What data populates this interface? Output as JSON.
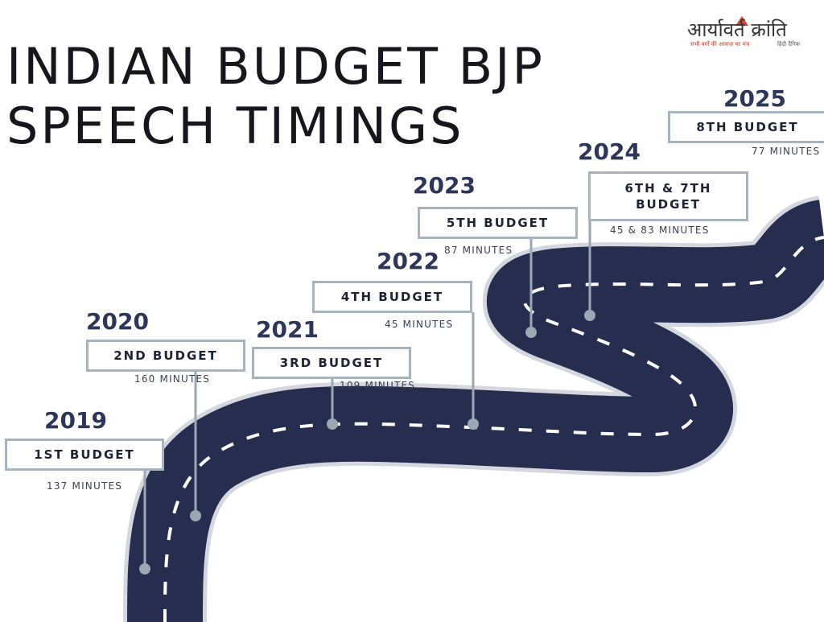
{
  "title": {
    "line1": "INDIAN BUDGET BJP",
    "line2": "SPEECH TIMINGS"
  },
  "logo": {
    "text": "आर्यावर्त क्रांति",
    "tagline": "सभी वर्गों की आवाज़ का मंच",
    "subtitle": "हिंदी दैनिक"
  },
  "milestones": [
    {
      "year": "2019",
      "label": "1ST BUDGET",
      "minutes": "137 MINUTES"
    },
    {
      "year": "2020",
      "label": "2ND BUDGET",
      "minutes": "160 MINUTES"
    },
    {
      "year": "2021",
      "label": "3RD BUDGET",
      "minutes": "109 MINUTES"
    },
    {
      "year": "2022",
      "label": "4TH BUDGET",
      "minutes": "45 MINUTES"
    },
    {
      "year": "2023",
      "label": "5TH BUDGET",
      "minutes": "87 MINUTES"
    },
    {
      "year": "2024",
      "label": "6TH & 7TH BUDGET",
      "minutes": "45 & 83 MINUTES"
    },
    {
      "year": "2025",
      "label": "8TH BUDGET",
      "minutes": "77 MINUTES"
    }
  ],
  "colors": {
    "road": "#262d4f",
    "road_edge": "#d4d8de",
    "lane_marking": "#ffffff",
    "connector": "#9aa8b4",
    "box_border": "#a7b4bf",
    "year_text": "#2d3658",
    "title_text": "#16161c",
    "logo_accent": "#d9442e"
  }
}
